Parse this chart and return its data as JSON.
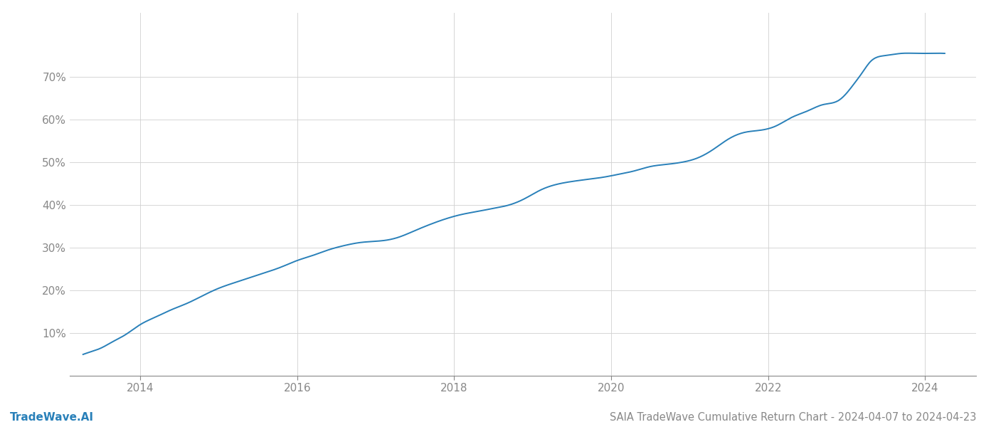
{
  "title": "SAIA TradeWave Cumulative Return Chart - 2024-04-07 to 2024-04-23",
  "watermark": "TradeWave.AI",
  "line_color": "#2980b9",
  "line_width": 1.4,
  "background_color": "#ffffff",
  "grid_color": "#d0d0d0",
  "data_x": [
    2013.27,
    2013.35,
    2013.5,
    2013.65,
    2013.8,
    2014.0,
    2014.2,
    2014.4,
    2014.6,
    2014.8,
    2015.0,
    2015.2,
    2015.4,
    2015.6,
    2015.8,
    2016.0,
    2016.2,
    2016.4,
    2016.6,
    2016.8,
    2017.0,
    2017.15,
    2017.3,
    2017.5,
    2017.7,
    2017.9,
    2018.1,
    2018.3,
    2018.5,
    2018.7,
    2018.9,
    2019.1,
    2019.3,
    2019.5,
    2019.7,
    2019.9,
    2020.1,
    2020.3,
    2020.5,
    2020.7,
    2020.9,
    2021.1,
    2021.3,
    2021.5,
    2021.7,
    2021.9,
    2022.1,
    2022.3,
    2022.5,
    2022.7,
    2022.9,
    2023.1,
    2023.2,
    2023.3,
    2023.5,
    2023.7,
    2023.9,
    2024.0,
    2024.25
  ],
  "data_y": [
    5.0,
    5.5,
    6.5,
    8.0,
    9.5,
    12.0,
    13.8,
    15.5,
    17.0,
    18.8,
    20.5,
    21.8,
    23.0,
    24.2,
    25.5,
    27.0,
    28.2,
    29.5,
    30.5,
    31.2,
    31.5,
    31.8,
    32.5,
    34.0,
    35.5,
    36.8,
    37.8,
    38.5,
    39.2,
    40.0,
    41.5,
    43.5,
    44.8,
    45.5,
    46.0,
    46.5,
    47.2,
    48.0,
    49.0,
    49.5,
    50.0,
    51.0,
    53.0,
    55.5,
    57.0,
    57.5,
    58.5,
    60.5,
    62.0,
    63.5,
    64.5,
    68.5,
    71.0,
    73.5,
    75.0,
    75.5,
    75.5,
    75.5,
    75.5
  ],
  "ylim": [
    0,
    85
  ],
  "xlim": [
    2013.1,
    2024.65
  ],
  "yticks": [
    10,
    20,
    30,
    40,
    50,
    60,
    70
  ],
  "ytick_labels": [
    "10%",
    "20%",
    "30%",
    "40%",
    "50%",
    "60%",
    "70%"
  ],
  "x_tick_years": [
    2014,
    2016,
    2018,
    2020,
    2022,
    2024
  ],
  "title_fontsize": 10.5,
  "watermark_fontsize": 11,
  "tick_fontsize": 11,
  "tick_color": "#888888",
  "spine_color": "#888888",
  "watermark_color": "#2980b9"
}
